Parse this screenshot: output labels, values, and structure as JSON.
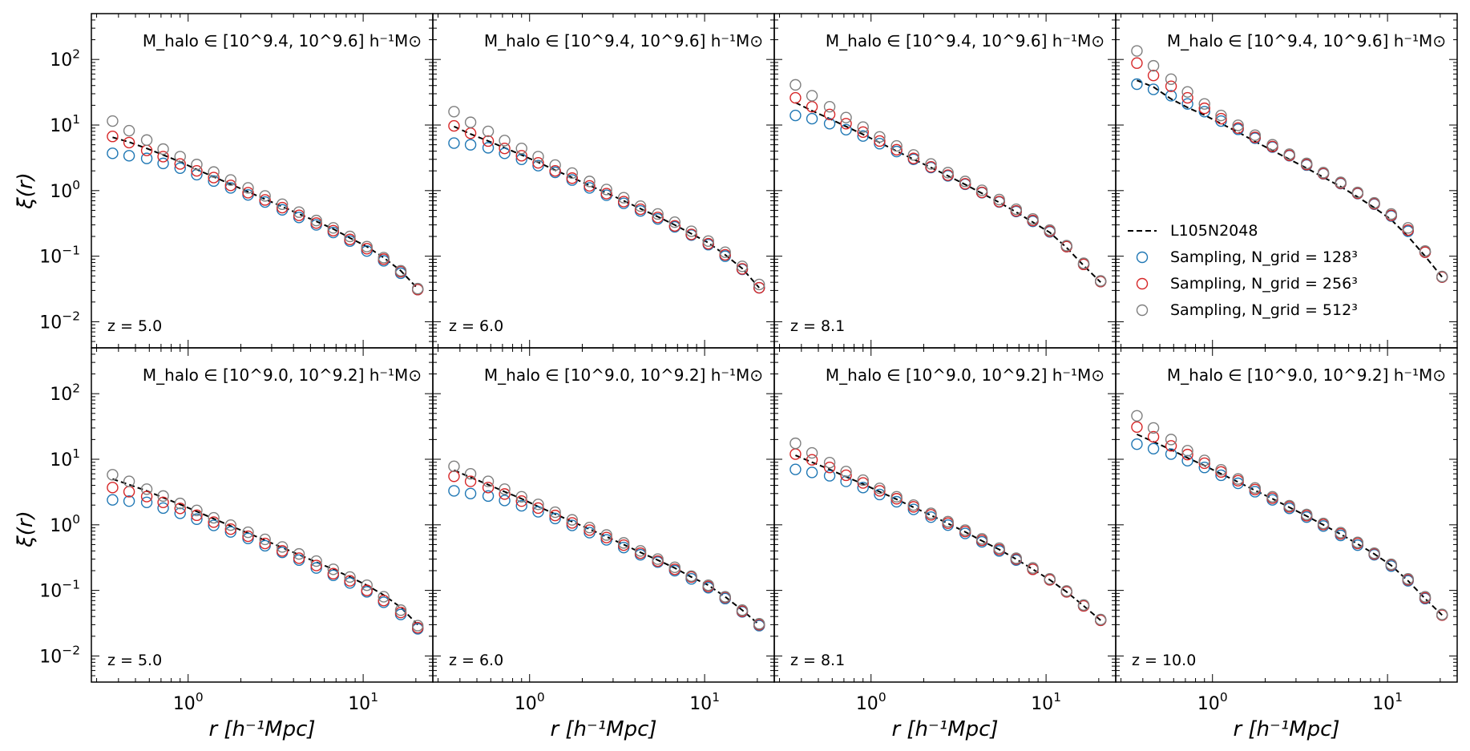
{
  "figure": {
    "ylabel": "ξ(r)",
    "xlabel": "r [h⁻¹Mpc]",
    "x_ticklabels": [
      "10⁰",
      "10¹"
    ],
    "y_ticklabels": [
      "10⁻²",
      "10⁻¹",
      "10⁰",
      "10¹",
      "10²"
    ]
  },
  "legend": {
    "location": "lower-right of top-right panel",
    "entries": [
      {
        "label": "L105N2048",
        "style": "dashed-line",
        "color": "#000000"
      },
      {
        "label": "Sampling, N_grid = 128³",
        "style": "open-circle",
        "color": "#1f77b4"
      },
      {
        "label": "Sampling, N_grid = 256³",
        "style": "open-circle",
        "color": "#d62728"
      },
      {
        "label": "Sampling, N_grid = 512³",
        "style": "open-circle",
        "color": "#7f7f7f"
      }
    ]
  },
  "chart_data": [
    {
      "type": "scatter",
      "row": 0,
      "col": 0,
      "mass_label": "M_halo ∈ [10^9.4, 10^9.6] h⁻¹M⊙",
      "z_label": "z = 5.0",
      "xscale": "log",
      "yscale": "log",
      "xlim": [
        0.28,
        25
      ],
      "ylim": [
        0.004,
        500
      ],
      "x": [
        0.37,
        0.46,
        0.58,
        0.72,
        0.9,
        1.12,
        1.4,
        1.75,
        2.2,
        2.75,
        3.45,
        4.3,
        5.4,
        6.75,
        8.4,
        10.5,
        13.1,
        16.4,
        20.5
      ],
      "series": [
        {
          "name": "L105N2048",
          "values": [
            6.5,
            5.5,
            4.4,
            3.5,
            2.75,
            2.1,
            1.62,
            1.25,
            0.96,
            0.74,
            0.57,
            0.44,
            0.34,
            0.26,
            0.19,
            0.14,
            0.095,
            0.06,
            0.032
          ]
        },
        {
          "name": "Sampling, N_grid = 128³",
          "values": [
            3.7,
            3.4,
            3.1,
            2.6,
            2.2,
            1.75,
            1.4,
            1.1,
            0.86,
            0.67,
            0.51,
            0.39,
            0.3,
            0.23,
            0.17,
            0.12,
            0.085,
            0.055,
            0.031
          ]
        },
        {
          "name": "Sampling, N_grid = 256³",
          "values": [
            6.7,
            5.4,
            4.1,
            3.3,
            2.55,
            2.0,
            1.58,
            1.2,
            0.93,
            0.72,
            0.55,
            0.42,
            0.32,
            0.245,
            0.18,
            0.13,
            0.09,
            0.058,
            0.031
          ]
        },
        {
          "name": "Sampling, N_grid = 512³",
          "values": [
            11.5,
            8.2,
            5.9,
            4.3,
            3.3,
            2.5,
            1.92,
            1.45,
            1.1,
            0.83,
            0.62,
            0.47,
            0.35,
            0.27,
            0.2,
            0.14,
            0.095,
            0.06,
            0.032
          ]
        }
      ]
    },
    {
      "type": "scatter",
      "row": 0,
      "col": 1,
      "mass_label": "M_halo ∈ [10^9.4, 10^9.6] h⁻¹M⊙",
      "z_label": "z = 6.0",
      "xscale": "log",
      "yscale": "log",
      "xlim": [
        0.28,
        25
      ],
      "ylim": [
        0.004,
        500
      ],
      "x": [
        0.37,
        0.46,
        0.58,
        0.72,
        0.9,
        1.12,
        1.4,
        1.75,
        2.2,
        2.75,
        3.45,
        4.3,
        5.4,
        6.75,
        8.4,
        10.5,
        13.1,
        16.4,
        20.5
      ],
      "series": [
        {
          "name": "L105N2048",
          "values": [
            9.5,
            7.3,
            5.7,
            4.5,
            3.5,
            2.7,
            2.05,
            1.58,
            1.2,
            0.92,
            0.7,
            0.53,
            0.4,
            0.3,
            0.22,
            0.16,
            0.105,
            0.065,
            0.033
          ]
        },
        {
          "name": "Sampling, N_grid = 128³",
          "values": [
            5.3,
            5.0,
            4.5,
            3.7,
            3.0,
            2.4,
            1.9,
            1.45,
            1.1,
            0.85,
            0.64,
            0.49,
            0.37,
            0.28,
            0.21,
            0.15,
            0.1,
            0.063,
            0.033
          ]
        },
        {
          "name": "Sampling, N_grid = 256³",
          "values": [
            9.7,
            7.5,
            5.7,
            4.4,
            3.4,
            2.65,
            2.0,
            1.55,
            1.18,
            0.9,
            0.68,
            0.52,
            0.39,
            0.29,
            0.215,
            0.155,
            0.105,
            0.064,
            0.033
          ]
        },
        {
          "name": "Sampling, N_grid = 512³",
          "values": [
            16,
            11,
            8.0,
            5.8,
            4.4,
            3.3,
            2.45,
            1.85,
            1.38,
            1.04,
            0.78,
            0.58,
            0.44,
            0.33,
            0.24,
            0.17,
            0.115,
            0.07,
            0.037
          ]
        }
      ]
    },
    {
      "type": "scatter",
      "row": 0,
      "col": 2,
      "mass_label": "M_halo ∈ [10^9.4, 10^9.6] h⁻¹M⊙",
      "z_label": "z = 8.1",
      "xscale": "log",
      "yscale": "log",
      "xlim": [
        0.28,
        25
      ],
      "ylim": [
        0.004,
        500
      ],
      "x": [
        0.37,
        0.46,
        0.58,
        0.72,
        0.9,
        1.12,
        1.4,
        1.75,
        2.2,
        2.75,
        3.45,
        4.3,
        5.4,
        6.75,
        8.4,
        10.5,
        13.1,
        16.4,
        20.5
      ],
      "series": [
        {
          "name": "L105N2048",
          "values": [
            22,
            16.5,
            12.5,
            9.5,
            7.2,
            5.4,
            4.0,
            3.0,
            2.25,
            1.68,
            1.24,
            0.91,
            0.66,
            0.47,
            0.33,
            0.23,
            0.135,
            0.072,
            0.04
          ]
        },
        {
          "name": "Sampling, N_grid = 128³",
          "values": [
            14,
            12.5,
            10.5,
            8.5,
            6.8,
            5.2,
            3.95,
            3.0,
            2.25,
            1.68,
            1.25,
            0.93,
            0.67,
            0.48,
            0.34,
            0.235,
            0.14,
            0.075,
            0.041
          ]
        },
        {
          "name": "Sampling, N_grid = 256³",
          "values": [
            26,
            19,
            14.5,
            10.5,
            7.8,
            5.7,
            4.2,
            3.1,
            2.3,
            1.72,
            1.27,
            0.94,
            0.68,
            0.49,
            0.35,
            0.24,
            0.14,
            0.075,
            0.041
          ]
        },
        {
          "name": "Sampling, N_grid = 512³",
          "values": [
            41,
            28,
            19,
            13,
            9.3,
            6.6,
            4.8,
            3.5,
            2.55,
            1.88,
            1.38,
            1.01,
            0.73,
            0.52,
            0.37,
            0.25,
            0.145,
            0.078,
            0.042
          ]
        }
      ]
    },
    {
      "type": "scatter",
      "row": 0,
      "col": 3,
      "mass_label": "M_halo ∈ [10^9.4, 10^9.6] h⁻¹M⊙",
      "z_label": "",
      "xscale": "log",
      "yscale": "log",
      "xlim": [
        0.28,
        25
      ],
      "ylim": [
        0.004,
        500
      ],
      "x": [
        0.37,
        0.46,
        0.58,
        0.72,
        0.9,
        1.12,
        1.4,
        1.75,
        2.2,
        2.75,
        3.45,
        4.3,
        5.4,
        6.75,
        8.4,
        10.5,
        13.1,
        16.4,
        20.5
      ],
      "series": [
        {
          "name": "L105N2048",
          "values": [
            48,
            38,
            25,
            18.5,
            14.2,
            10.5,
            7.8,
            5.6,
            4.1,
            3.0,
            2.2,
            1.6,
            1.15,
            0.8,
            0.55,
            0.36,
            0.2,
            0.1,
            0.048
          ]
        },
        {
          "name": "Sampling, N_grid = 128³",
          "values": [
            42,
            35,
            28,
            21,
            16,
            11.5,
            8.6,
            6.3,
            4.6,
            3.4,
            2.45,
            1.8,
            1.28,
            0.9,
            0.62,
            0.41,
            0.24,
            0.115,
            0.048
          ]
        },
        {
          "name": "Sampling, N_grid = 256³",
          "values": [
            88,
            57,
            39,
            26,
            18,
            12.5,
            9.0,
            6.5,
            4.7,
            3.45,
            2.5,
            1.82,
            1.3,
            0.91,
            0.63,
            0.42,
            0.25,
            0.115,
            0.048
          ]
        },
        {
          "name": "Sampling, N_grid = 512³",
          "values": [
            135,
            80,
            50,
            32,
            21,
            14,
            9.9,
            7.0,
            5.0,
            3.6,
            2.6,
            1.88,
            1.34,
            0.94,
            0.65,
            0.44,
            0.27,
            0.12,
            0.049
          ]
        }
      ]
    },
    {
      "type": "scatter",
      "row": 1,
      "col": 0,
      "mass_label": "M_halo ∈ [10^9.0, 10^9.2] h⁻¹M⊙",
      "z_label": "z = 5.0",
      "xscale": "log",
      "yscale": "log",
      "xlim": [
        0.28,
        25
      ],
      "ylim": [
        0.004,
        500
      ],
      "x": [
        0.37,
        0.46,
        0.58,
        0.72,
        0.9,
        1.12,
        1.4,
        1.75,
        2.2,
        2.75,
        3.45,
        4.3,
        5.4,
        6.75,
        8.4,
        10.5,
        13.1,
        16.4,
        20.5
      ],
      "series": [
        {
          "name": "L105N2048",
          "values": [
            5.0,
            4.1,
            3.3,
            2.6,
            2.05,
            1.6,
            1.24,
            0.96,
            0.75,
            0.58,
            0.45,
            0.35,
            0.27,
            0.21,
            0.16,
            0.12,
            0.085,
            0.055,
            0.03
          ]
        },
        {
          "name": "Sampling, N_grid = 128³",
          "values": [
            2.4,
            2.3,
            2.2,
            1.8,
            1.5,
            1.22,
            0.98,
            0.78,
            0.62,
            0.48,
            0.38,
            0.29,
            0.22,
            0.17,
            0.13,
            0.095,
            0.066,
            0.043,
            0.026
          ]
        },
        {
          "name": "Sampling, N_grid = 256³",
          "values": [
            3.7,
            3.2,
            2.7,
            2.2,
            1.78,
            1.4,
            1.1,
            0.86,
            0.67,
            0.52,
            0.4,
            0.31,
            0.24,
            0.18,
            0.14,
            0.1,
            0.07,
            0.046,
            0.027
          ]
        },
        {
          "name": "Sampling, N_grid = 512³",
          "values": [
            5.8,
            4.6,
            3.5,
            2.75,
            2.12,
            1.66,
            1.28,
            0.99,
            0.77,
            0.6,
            0.46,
            0.36,
            0.28,
            0.21,
            0.16,
            0.12,
            0.08,
            0.05,
            0.029
          ]
        }
      ]
    },
    {
      "type": "scatter",
      "row": 1,
      "col": 1,
      "mass_label": "M_halo ∈ [10^9.0, 10^9.2] h⁻¹M⊙",
      "z_label": "z = 6.0",
      "xscale": "log",
      "yscale": "log",
      "xlim": [
        0.28,
        25
      ],
      "ylim": [
        0.004,
        500
      ],
      "x": [
        0.37,
        0.46,
        0.58,
        0.72,
        0.9,
        1.12,
        1.4,
        1.75,
        2.2,
        2.75,
        3.45,
        4.3,
        5.4,
        6.75,
        8.4,
        10.5,
        13.1,
        16.4,
        20.5
      ],
      "series": [
        {
          "name": "L105N2048",
          "values": [
            6.8,
            5.3,
            4.1,
            3.2,
            2.5,
            1.9,
            1.46,
            1.12,
            0.86,
            0.66,
            0.5,
            0.38,
            0.29,
            0.22,
            0.16,
            0.12,
            0.08,
            0.05,
            0.03
          ]
        },
        {
          "name": "Sampling, N_grid = 128³",
          "values": [
            3.3,
            3.0,
            2.75,
            2.35,
            1.95,
            1.58,
            1.25,
            0.98,
            0.76,
            0.59,
            0.45,
            0.35,
            0.27,
            0.2,
            0.15,
            0.11,
            0.075,
            0.047,
            0.029
          ]
        },
        {
          "name": "Sampling, N_grid = 256³",
          "values": [
            5.5,
            4.6,
            3.7,
            2.95,
            2.3,
            1.8,
            1.39,
            1.07,
            0.83,
            0.64,
            0.49,
            0.37,
            0.28,
            0.21,
            0.16,
            0.115,
            0.078,
            0.048,
            0.03
          ]
        },
        {
          "name": "Sampling, N_grid = 512³",
          "values": [
            7.8,
            6.0,
            4.6,
            3.5,
            2.68,
            2.05,
            1.56,
            1.19,
            0.91,
            0.7,
            0.53,
            0.4,
            0.3,
            0.225,
            0.165,
            0.12,
            0.08,
            0.05,
            0.031
          ]
        }
      ]
    },
    {
      "type": "scatter",
      "row": 1,
      "col": 2,
      "mass_label": "M_halo ∈ [10^9.0, 10^9.2] h⁻¹M⊙",
      "z_label": "z = 8.1",
      "xscale": "log",
      "yscale": "log",
      "xlim": [
        0.28,
        25
      ],
      "ylim": [
        0.004,
        500
      ],
      "x": [
        0.37,
        0.46,
        0.58,
        0.72,
        0.9,
        1.12,
        1.4,
        1.75,
        2.2,
        2.75,
        3.45,
        4.3,
        5.4,
        6.75,
        8.4,
        10.5,
        13.1,
        16.4,
        20.5
      ],
      "series": [
        {
          "name": "L105N2048",
          "values": [
            11.5,
            9.0,
            7.0,
            5.4,
            4.2,
            3.2,
            2.45,
            1.85,
            1.4,
            1.05,
            0.78,
            0.57,
            0.42,
            0.3,
            0.21,
            0.145,
            0.095,
            0.058,
            0.035
          ]
        },
        {
          "name": "Sampling, N_grid = 128³",
          "values": [
            7.0,
            6.3,
            5.6,
            4.6,
            3.7,
            2.9,
            2.25,
            1.72,
            1.31,
            0.99,
            0.74,
            0.55,
            0.4,
            0.29,
            0.21,
            0.145,
            0.095,
            0.058,
            0.035
          ]
        },
        {
          "name": "Sampling, N_grid = 256³",
          "values": [
            12,
            9.8,
            7.5,
            5.7,
            4.35,
            3.3,
            2.5,
            1.88,
            1.42,
            1.06,
            0.79,
            0.58,
            0.42,
            0.3,
            0.21,
            0.145,
            0.095,
            0.058,
            0.035
          ]
        },
        {
          "name": "Sampling, N_grid = 512³",
          "values": [
            17.5,
            12.5,
            8.9,
            6.5,
            4.8,
            3.6,
            2.68,
            2.0,
            1.5,
            1.12,
            0.83,
            0.61,
            0.44,
            0.31,
            0.22,
            0.15,
            0.098,
            0.06,
            0.036
          ]
        }
      ]
    },
    {
      "type": "scatter",
      "row": 1,
      "col": 3,
      "mass_label": "M_halo ∈ [10^9.0, 10^9.2] h⁻¹M⊙",
      "z_label": "z = 10.0",
      "xscale": "log",
      "yscale": "log",
      "xlim": [
        0.28,
        25
      ],
      "ylim": [
        0.004,
        500
      ],
      "x": [
        0.37,
        0.46,
        0.58,
        0.72,
        0.9,
        1.12,
        1.4,
        1.75,
        2.2,
        2.75,
        3.45,
        4.3,
        5.4,
        6.75,
        8.4,
        10.5,
        13.1,
        16.4,
        20.5
      ],
      "series": [
        {
          "name": "L105N2048",
          "values": [
            24,
            18.5,
            14,
            10.5,
            8.0,
            6.0,
            4.5,
            3.35,
            2.5,
            1.85,
            1.36,
            1.0,
            0.72,
            0.51,
            0.36,
            0.24,
            0.14,
            0.075,
            0.042
          ]
        },
        {
          "name": "Sampling, N_grid = 128³",
          "values": [
            17,
            14.5,
            12,
            9.5,
            7.5,
            5.7,
            4.3,
            3.2,
            2.4,
            1.78,
            1.31,
            0.96,
            0.69,
            0.49,
            0.35,
            0.235,
            0.14,
            0.075,
            0.042
          ]
        },
        {
          "name": "Sampling, N_grid = 256³",
          "values": [
            31,
            22,
            16,
            11.8,
            8.7,
            6.4,
            4.7,
            3.45,
            2.55,
            1.88,
            1.38,
            1.01,
            0.73,
            0.52,
            0.36,
            0.245,
            0.145,
            0.077,
            0.042
          ]
        },
        {
          "name": "Sampling, N_grid = 512³",
          "values": [
            46,
            30,
            20,
            13.5,
            9.6,
            6.9,
            5.0,
            3.65,
            2.68,
            1.96,
            1.44,
            1.05,
            0.76,
            0.54,
            0.37,
            0.25,
            0.15,
            0.08,
            0.043
          ]
        }
      ]
    }
  ]
}
